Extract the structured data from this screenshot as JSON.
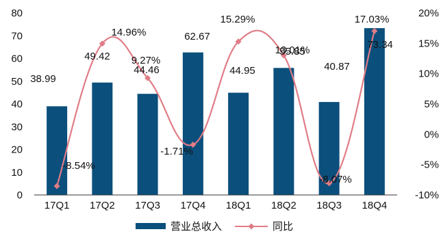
{
  "chart_data": {
    "type": "bar",
    "categories": [
      "17Q1",
      "17Q2",
      "17Q3",
      "17Q4",
      "18Q1",
      "18Q2",
      "18Q3",
      "18Q4"
    ],
    "series": [
      {
        "name": "营业总收入",
        "type": "bar",
        "axis": "left",
        "values": [
          38.99,
          49.42,
          44.46,
          62.67,
          44.95,
          55.85,
          40.87,
          73.34
        ],
        "labels": [
          "38.99",
          "49.42",
          "44.46",
          "62.67",
          "44.95",
          "55.85",
          "40.87",
          "73.34"
        ]
      },
      {
        "name": "同比",
        "type": "line",
        "axis": "right",
        "smooth": true,
        "values": [
          -8.54,
          14.96,
          9.27,
          -1.71,
          15.29,
          13.01,
          -8.07,
          17.03
        ],
        "labels": [
          "-8.54%",
          "14.96%",
          "9.27%",
          "-1.71%",
          "15.29%",
          "13.01%",
          "-8.07%",
          "17.03%"
        ]
      }
    ],
    "y_left": {
      "min": 0,
      "max": 80,
      "step": 10,
      "tick_labels": [
        "0",
        "10",
        "20",
        "30",
        "40",
        "50",
        "60",
        "70",
        "80"
      ]
    },
    "y_right": {
      "min": -10,
      "max": 20,
      "step": 5,
      "tick_labels": [
        "-10%",
        "-5%",
        "0%",
        "5%",
        "10%",
        "15%",
        "20%"
      ]
    },
    "legend_position": "bottom-center",
    "grid": false,
    "colors": {
      "bar": "#0b4f7c",
      "line": "#e07c86",
      "axis": "#333333"
    }
  }
}
